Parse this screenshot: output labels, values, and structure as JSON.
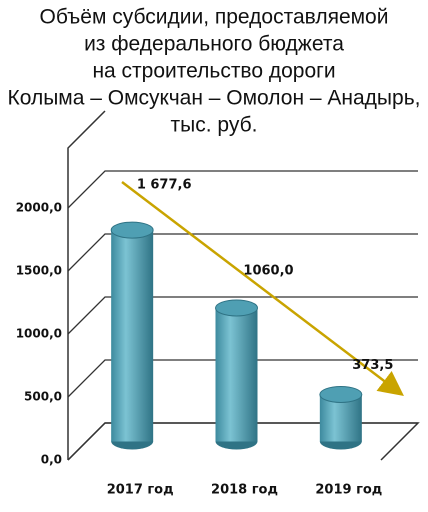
{
  "chart_data": {
    "type": "bar",
    "title": [
      "Объём субсидии, предоставляемой",
      "из федерального бюджета",
      "на строительство дороги",
      "Колыма – Омсукчан – Омолон – Анадырь,",
      "тыс. руб."
    ],
    "categories": [
      "2017 год",
      "2018 год",
      "2019 год"
    ],
    "values": [
      1677.6,
      1060.0,
      373.5
    ],
    "value_labels": [
      "1 677,6",
      "1060,0",
      "373,5"
    ],
    "color": "#4f9fb3",
    "ylim": [
      0,
      2000
    ],
    "yticks": [
      {
        "value": 0,
        "label": "0,0"
      },
      {
        "value": 500,
        "label": "500,0"
      },
      {
        "value": 1000,
        "label": "1000,0"
      },
      {
        "value": 1500,
        "label": "1500,0"
      },
      {
        "value": 2000,
        "label": "2000,0"
      }
    ],
    "grid": true
  }
}
